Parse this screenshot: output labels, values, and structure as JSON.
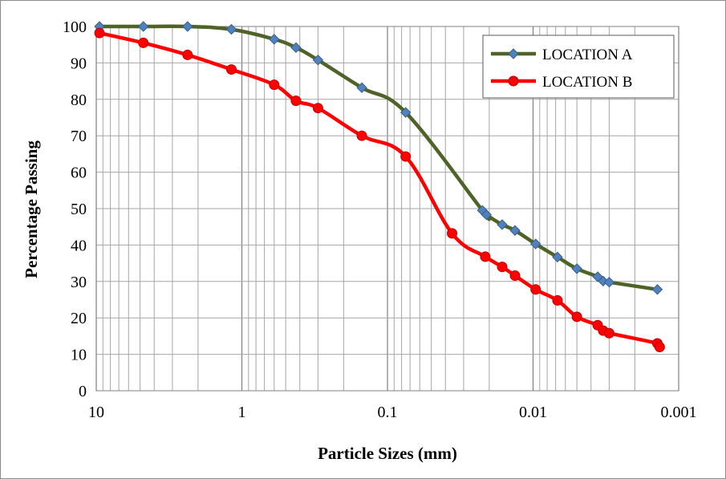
{
  "chart_data": {
    "type": "line",
    "title": "",
    "xlabel": "Particle Sizes (mm)",
    "ylabel": "Percentage Passing",
    "x_scale": "log",
    "x_reversed": true,
    "xlim": [
      10,
      0.001
    ],
    "ylim": [
      0,
      100
    ],
    "x_ticks": [
      10,
      1,
      0.1,
      0.01,
      0.001
    ],
    "x_tick_labels": [
      "10",
      "1",
      "0.1",
      "0.01",
      "0.001"
    ],
    "y_ticks": [
      0,
      10,
      20,
      30,
      40,
      50,
      60,
      70,
      80,
      90,
      100
    ],
    "y_tick_labels": [
      "0",
      "10",
      "20",
      "30",
      "40",
      "50",
      "60",
      "70",
      "80",
      "90",
      "100"
    ],
    "grid": true,
    "legend_position": "top-right",
    "series": [
      {
        "name": "LOCATION A",
        "color": "#4f6228",
        "marker": "diamond",
        "marker_color": "#4f81bd",
        "points": [
          [
            9.5,
            100
          ],
          [
            4.75,
            100
          ],
          [
            2.36,
            100
          ],
          [
            1.18,
            99.2
          ],
          [
            0.6,
            96.5
          ],
          [
            0.425,
            94.2
          ],
          [
            0.3,
            90.8
          ],
          [
            0.15,
            83.2
          ],
          [
            0.075,
            76.4
          ],
          [
            0.0223,
            49.5
          ],
          [
            0.0209,
            48.3
          ],
          [
            0.0163,
            45.6
          ],
          [
            0.0133,
            44
          ],
          [
            0.0096,
            40.3
          ],
          [
            0.0068,
            36.7
          ],
          [
            0.005,
            33.5
          ],
          [
            0.0036,
            31.3
          ],
          [
            0.0033,
            30.1
          ],
          [
            0.003,
            29.8
          ],
          [
            0.0014,
            27.8
          ]
        ]
      },
      {
        "name": "LOCATION B",
        "color": "#ff0000",
        "marker": "circle",
        "marker_color": "#ff0000",
        "points": [
          [
            9.5,
            98.2
          ],
          [
            4.75,
            95.5
          ],
          [
            2.36,
            92.2
          ],
          [
            1.18,
            88.2
          ],
          [
            0.6,
            84
          ],
          [
            0.425,
            79.6
          ],
          [
            0.3,
            77.6
          ],
          [
            0.15,
            70
          ],
          [
            0.075,
            64.3
          ],
          [
            0.036,
            43.2
          ],
          [
            0.0213,
            36.8
          ],
          [
            0.0163,
            34
          ],
          [
            0.0133,
            31.6
          ],
          [
            0.0096,
            27.8
          ],
          [
            0.0068,
            24.8
          ],
          [
            0.005,
            20.3
          ],
          [
            0.0036,
            18
          ],
          [
            0.0033,
            16.5
          ],
          [
            0.003,
            15.8
          ],
          [
            0.0014,
            13
          ],
          [
            0.00135,
            12
          ]
        ]
      }
    ]
  }
}
